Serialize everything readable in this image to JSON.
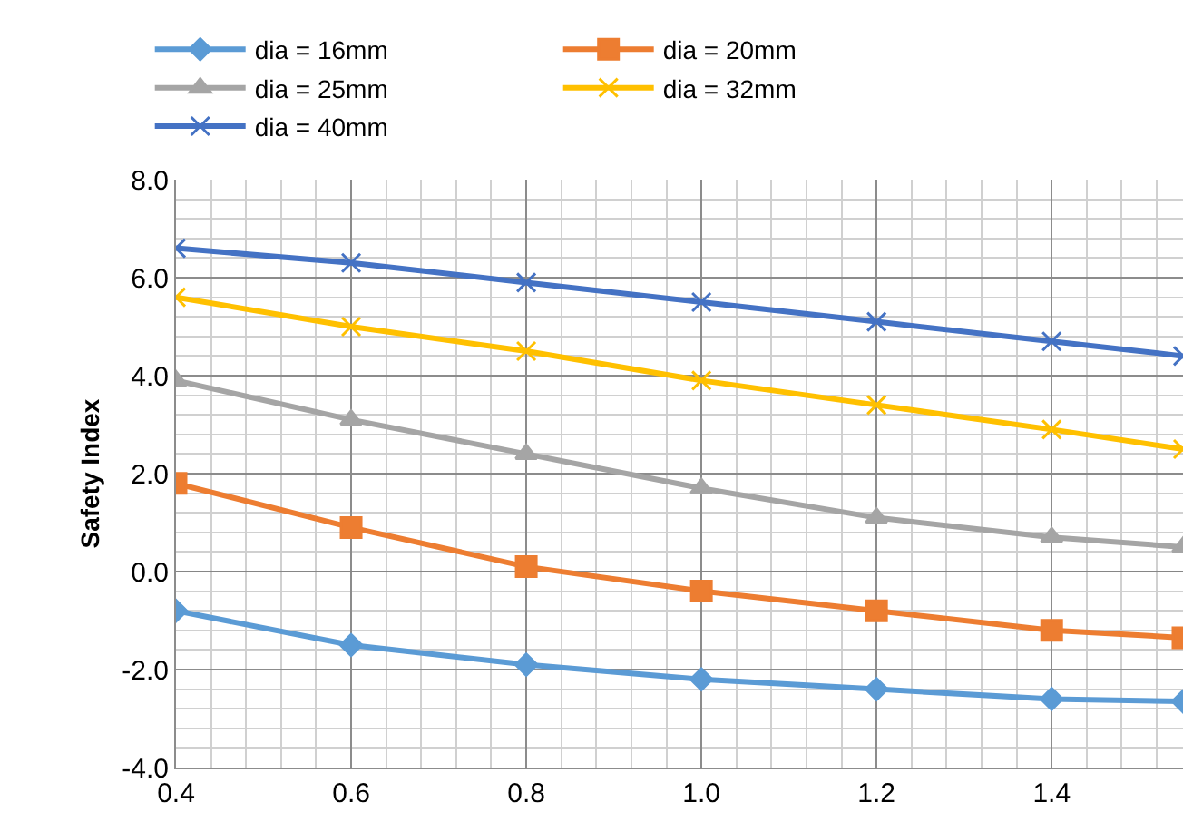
{
  "chart_data": {
    "type": "line",
    "ylabel": "Safety Index",
    "x": [
      0.4,
      0.6,
      0.8,
      1.0,
      1.2,
      1.4,
      1.55
    ],
    "series": [
      {
        "name": "dia = 16mm",
        "color": "#5b9bd5",
        "marker": "diamond",
        "values": [
          -0.8,
          -1.5,
          -1.9,
          -2.2,
          -2.4,
          -2.6,
          -2.65
        ]
      },
      {
        "name": "dia = 20mm",
        "color": "#ed7d31",
        "marker": "square",
        "values": [
          1.8,
          0.9,
          0.1,
          -0.4,
          -0.8,
          -1.2,
          -1.35
        ]
      },
      {
        "name": "dia = 25mm",
        "color": "#a5a5a5",
        "marker": "triangle",
        "values": [
          3.9,
          3.1,
          2.4,
          1.7,
          1.1,
          0.7,
          0.5
        ]
      },
      {
        "name": "dia = 32mm",
        "color": "#ffc000",
        "marker": "cross",
        "values": [
          5.6,
          5.0,
          4.5,
          3.9,
          3.4,
          2.9,
          2.5
        ]
      },
      {
        "name": "dia = 40mm",
        "color": "#4472c4",
        "marker": "cross",
        "values": [
          6.6,
          6.3,
          5.9,
          5.5,
          5.1,
          4.7,
          4.4
        ]
      }
    ],
    "xlim": [
      0.4,
      1.55
    ],
    "xticks": [
      {
        "value": 0.4,
        "label": "0.4"
      },
      {
        "value": 0.6,
        "label": "0.6"
      },
      {
        "value": 0.8,
        "label": "0.8"
      },
      {
        "value": 1.0,
        "label": "1.0"
      },
      {
        "value": 1.2,
        "label": "1.2"
      },
      {
        "value": 1.4,
        "label": "1.4"
      }
    ],
    "ylim": [
      -4,
      8
    ],
    "yticks": [
      {
        "value": -4,
        "label": "-4.0"
      },
      {
        "value": -2,
        "label": "-2.0"
      },
      {
        "value": 0,
        "label": "0.0"
      },
      {
        "value": 2,
        "label": "2.0"
      },
      {
        "value": 4,
        "label": "4.0"
      },
      {
        "value": 6,
        "label": "6.0"
      },
      {
        "value": 8,
        "label": "8.0"
      }
    ],
    "grid": true,
    "legend": "top",
    "line_style": "solid"
  }
}
